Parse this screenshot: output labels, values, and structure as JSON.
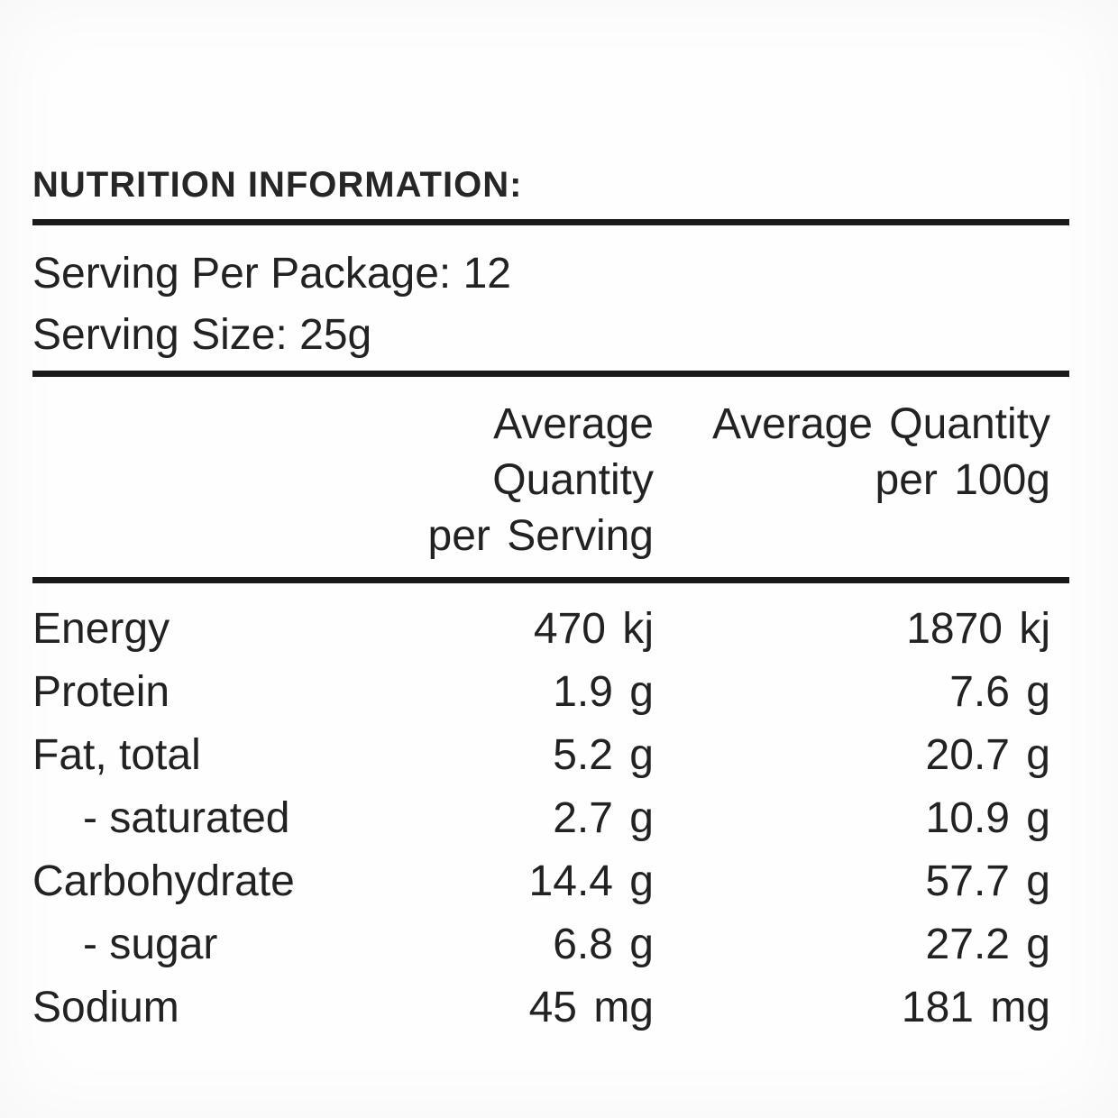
{
  "title": "NUTRITION INFORMATION:",
  "serving": {
    "lines": [
      "Serving Per Package: 12",
      "Serving Size: 25g"
    ]
  },
  "table": {
    "columns": [
      {
        "line1": "Average Quantity",
        "line2": "per Serving"
      },
      {
        "line1": "Average Quantity",
        "line2": "per 100g"
      }
    ],
    "rows": [
      {
        "label": "Energy",
        "per_serving": "470 kj",
        "per_100g": "1870 kj"
      },
      {
        "label": "Protein",
        "per_serving": "1.9 g",
        "per_100g": "7.6 g"
      },
      {
        "label": "Fat, total",
        "per_serving": "5.2 g",
        "per_100g": "20.7 g"
      },
      {
        "label": "- saturated",
        "per_serving": "2.7 g",
        "per_100g": "10.9 g"
      },
      {
        "label": "Carbohydrate",
        "per_serving": "14.4 g",
        "per_100g": "57.7 g"
      },
      {
        "label": "- sugar",
        "per_serving": "6.8 g",
        "per_100g": "27.2 g"
      },
      {
        "label": "Sodium",
        "per_serving": "45 mg",
        "per_100g": "181 mg"
      }
    ]
  },
  "colors": {
    "text": "#222222",
    "rule": "#1a1a1a",
    "background": "#fefefe"
  }
}
